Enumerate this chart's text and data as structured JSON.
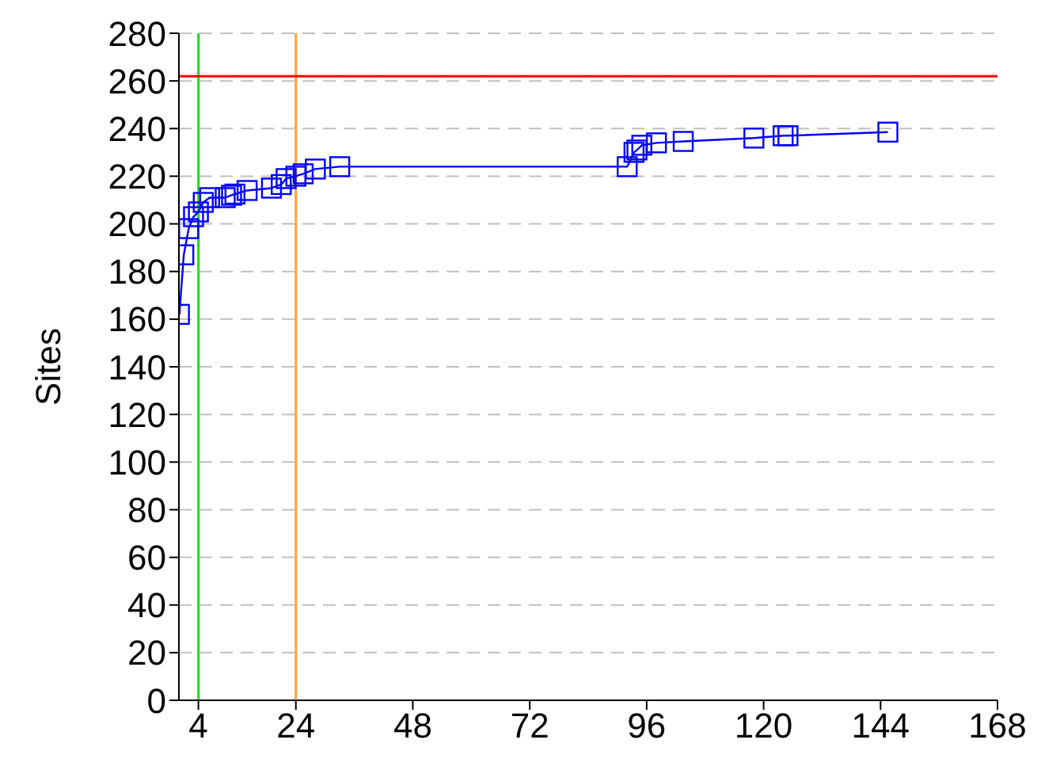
{
  "chart_data": {
    "type": "line",
    "ylabel": "Sites",
    "marker": "square",
    "line_style": "solid",
    "x": [
      0.1,
      1,
      2,
      3,
      4,
      5,
      6.3,
      9.5,
      10.8,
      11.5,
      14,
      19,
      21,
      22,
      24,
      25.5,
      28,
      33,
      92,
      93.4,
      94,
      95,
      98,
      103.5,
      118,
      124,
      125,
      145.5
    ],
    "series": [
      {
        "color": "#0000ff",
        "values": [
          162,
          187,
          198,
          203,
          205,
          209,
          211,
          211,
          212,
          212.5,
          214,
          215,
          216.5,
          219,
          220,
          221,
          223,
          224,
          224,
          230,
          231,
          233,
          234,
          234.6,
          236,
          237,
          237,
          238.5
        ]
      }
    ],
    "xlim": [
      0,
      168
    ],
    "xticks": [
      4,
      24,
      48,
      72,
      96,
      120,
      144,
      168
    ],
    "ylim": [
      0,
      280
    ],
    "yticks": [
      0,
      20,
      40,
      60,
      80,
      100,
      120,
      140,
      160,
      180,
      200,
      220,
      240,
      260,
      280
    ],
    "grid": "y",
    "ref_lines": [
      {
        "axis": "x",
        "value": 4,
        "color": "#00ee00"
      },
      {
        "axis": "x",
        "value": 24,
        "color": "#ffa040"
      },
      {
        "axis": "y",
        "value": 262,
        "color": "#ff0000"
      }
    ]
  }
}
